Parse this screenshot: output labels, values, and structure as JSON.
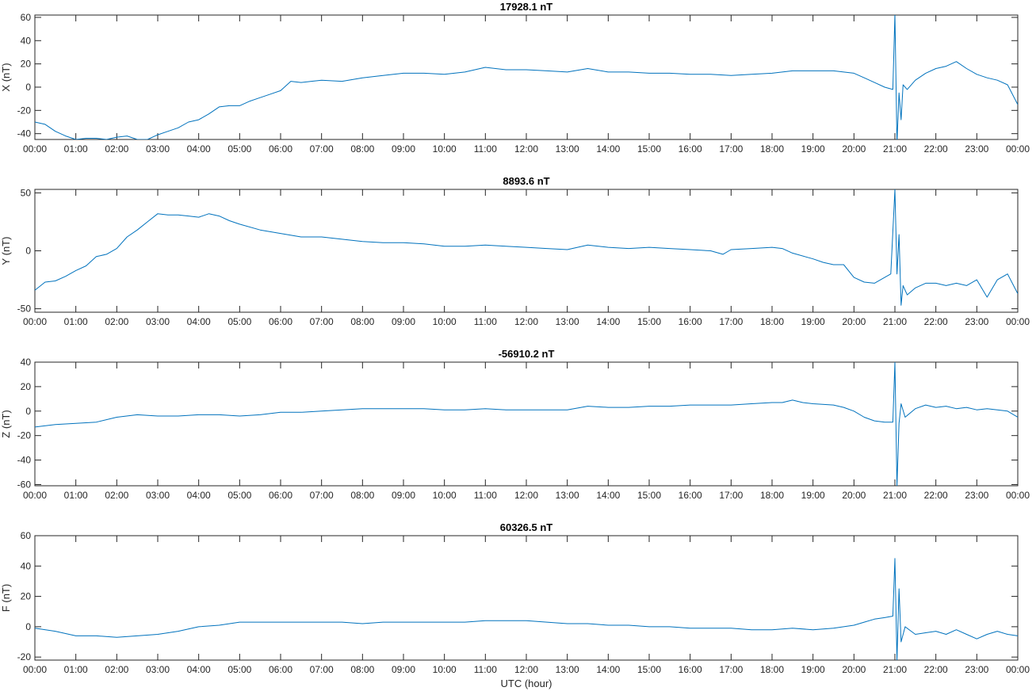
{
  "figure": {
    "xlabel": "UTC (hour)",
    "x_tick_labels": [
      "00:00",
      "01:00",
      "02:00",
      "03:00",
      "04:00",
      "05:00",
      "06:00",
      "07:00",
      "08:00",
      "09:00",
      "10:00",
      "11:00",
      "12:00",
      "13:00",
      "14:00",
      "15:00",
      "16:00",
      "17:00",
      "18:00",
      "19:00",
      "20:00",
      "21:00",
      "22:00",
      "23:00",
      "00:00"
    ]
  },
  "colors": {
    "line": "#0072BD",
    "axes": "#262626",
    "background": "#ffffff"
  },
  "chart_data": [
    {
      "type": "line",
      "title": "17928.1 nT",
      "ylabel": "X (nT)",
      "xlabel": "",
      "xlim": [
        0,
        24
      ],
      "ylim": [
        -45,
        62
      ],
      "yticks": [
        -40,
        -20,
        0,
        20,
        40,
        60
      ],
      "grid": false,
      "series": [
        {
          "x": [
            0,
            0.25,
            0.5,
            0.75,
            1,
            1.25,
            1.5,
            1.75,
            2,
            2.25,
            2.5,
            2.75,
            3,
            3.25,
            3.5,
            3.75,
            4,
            4.25,
            4.5,
            4.75,
            5,
            5.25,
            5.5,
            5.75,
            6,
            6.25,
            6.5,
            6.75,
            7,
            7.5,
            8,
            8.5,
            9,
            9.5,
            10,
            10.5,
            11,
            11.5,
            12,
            12.5,
            13,
            13.5,
            14,
            14.5,
            15,
            15.5,
            16,
            16.5,
            17,
            17.5,
            18,
            18.5,
            19,
            19.5,
            20,
            20.25,
            20.5,
            20.75,
            20.95,
            21.0,
            21.05,
            21.1,
            21.15,
            21.2,
            21.3,
            21.5,
            21.75,
            22,
            22.25,
            22.5,
            22.75,
            23,
            23.25,
            23.5,
            23.75,
            24
          ],
          "y": [
            -30,
            -32,
            -38,
            -42,
            -45,
            -44,
            -44,
            -45,
            -43,
            -42,
            -45,
            -45,
            -41,
            -38,
            -35,
            -30,
            -28,
            -23,
            -17,
            -16,
            -16,
            -12,
            -9,
            -6,
            -3,
            5,
            4,
            5,
            6,
            5,
            8,
            10,
            12,
            12,
            11,
            13,
            17,
            15,
            15,
            14,
            13,
            16,
            13,
            13,
            12,
            12,
            11,
            11,
            10,
            11,
            12,
            14,
            14,
            14,
            12,
            8,
            4,
            0,
            -2,
            63,
            -48,
            -5,
            -28,
            2,
            -2,
            6,
            12,
            16,
            18,
            22,
            16,
            11,
            8,
            6,
            2,
            -15
          ]
        }
      ]
    },
    {
      "type": "line",
      "title": "8893.6 nT",
      "ylabel": "Y (nT)",
      "xlabel": "",
      "xlim": [
        0,
        24
      ],
      "ylim": [
        -53,
        53
      ],
      "yticks": [
        -50,
        0,
        50
      ],
      "grid": false,
      "series": [
        {
          "x": [
            0,
            0.25,
            0.5,
            0.75,
            1,
            1.25,
            1.5,
            1.75,
            2,
            2.25,
            2.5,
            2.75,
            3,
            3.25,
            3.5,
            3.75,
            4,
            4.25,
            4.5,
            4.75,
            5,
            5.5,
            6,
            6.5,
            7,
            7.5,
            8,
            8.5,
            9,
            9.5,
            10,
            10.5,
            11,
            11.5,
            12,
            12.5,
            13,
            13.5,
            14,
            14.5,
            15,
            15.5,
            16,
            16.5,
            16.8,
            17,
            17.5,
            18,
            18.25,
            18.5,
            19,
            19.25,
            19.5,
            19.75,
            20,
            20.25,
            20.5,
            20.75,
            20.9,
            21.0,
            21.05,
            21.1,
            21.15,
            21.2,
            21.3,
            21.5,
            21.75,
            22,
            22.25,
            22.5,
            22.75,
            23,
            23.25,
            23.5,
            23.75,
            24
          ],
          "y": [
            -34,
            -27,
            -26,
            -22,
            -17,
            -13,
            -5,
            -3,
            2,
            12,
            18,
            25,
            32,
            31,
            31,
            30,
            29,
            32,
            30,
            26,
            23,
            18,
            15,
            12,
            12,
            10,
            8,
            7,
            7,
            6,
            4,
            4,
            5,
            4,
            3,
            2,
            1,
            5,
            3,
            2,
            3,
            2,
            1,
            0,
            -3,
            1,
            2,
            3,
            2,
            -2,
            -7,
            -10,
            -12,
            -12,
            -23,
            -27,
            -28,
            -23,
            -20,
            53,
            -20,
            14,
            -47,
            -30,
            -38,
            -32,
            -28,
            -28,
            -30,
            -28,
            -30,
            -25,
            -40,
            -25,
            -20,
            -37
          ]
        }
      ]
    },
    {
      "type": "line",
      "title": "-56910.2 nT",
      "ylabel": "Z (nT)",
      "xlabel": "",
      "xlim": [
        0,
        24
      ],
      "ylim": [
        -61,
        40
      ],
      "yticks": [
        -60,
        -40,
        -20,
        0,
        20,
        40
      ],
      "grid": false,
      "series": [
        {
          "x": [
            0,
            0.5,
            1,
            1.5,
            2,
            2.5,
            3,
            3.5,
            4,
            4.5,
            5,
            5.5,
            6,
            6.5,
            7,
            7.5,
            8,
            8.5,
            9,
            9.5,
            10,
            10.5,
            11,
            11.5,
            12,
            12.5,
            13,
            13.5,
            14,
            14.5,
            15,
            15.5,
            16,
            16.5,
            17,
            17.5,
            18,
            18.25,
            18.5,
            18.75,
            19,
            19.5,
            19.75,
            20,
            20.25,
            20.5,
            20.75,
            20.95,
            21.0,
            21.05,
            21.1,
            21.15,
            21.25,
            21.5,
            21.75,
            22,
            22.25,
            22.5,
            22.75,
            23,
            23.25,
            23.5,
            23.75,
            24
          ],
          "y": [
            -13,
            -11,
            -10,
            -9,
            -5,
            -3,
            -4,
            -4,
            -3,
            -3,
            -4,
            -3,
            -1,
            -1,
            0,
            1,
            2,
            2,
            2,
            2,
            1,
            1,
            2,
            1,
            1,
            1,
            1,
            4,
            3,
            3,
            4,
            4,
            5,
            5,
            5,
            6,
            7,
            7,
            9,
            7,
            6,
            5,
            3,
            0,
            -5,
            -8,
            -9,
            -9,
            40,
            -61,
            -10,
            6,
            -5,
            2,
            5,
            3,
            4,
            2,
            3,
            1,
            2,
            1,
            0,
            -5
          ]
        }
      ]
    },
    {
      "type": "line",
      "title": "60326.5 nT",
      "ylabel": "F (nT)",
      "xlabel": "UTC (hour)",
      "xlim": [
        0,
        24
      ],
      "ylim": [
        -22,
        60
      ],
      "yticks": [
        -20,
        0,
        20,
        40,
        60
      ],
      "grid": false,
      "series": [
        {
          "x": [
            0,
            0.5,
            1,
            1.5,
            2,
            2.5,
            3,
            3.5,
            4,
            4.5,
            5,
            5.5,
            6,
            6.5,
            7,
            7.5,
            8,
            8.5,
            9,
            9.5,
            10,
            10.5,
            11,
            11.5,
            12,
            12.5,
            13,
            13.5,
            14,
            14.5,
            15,
            15.5,
            16,
            16.5,
            17,
            17.5,
            18,
            18.5,
            19,
            19.5,
            20,
            20.25,
            20.5,
            20.75,
            20.95,
            21.0,
            21.05,
            21.1,
            21.15,
            21.25,
            21.5,
            21.75,
            22,
            22.25,
            22.5,
            22.75,
            23,
            23.25,
            23.5,
            23.75,
            24
          ],
          "y": [
            -1,
            -3,
            -6,
            -6,
            -7,
            -6,
            -5,
            -3,
            0,
            1,
            3,
            3,
            3,
            3,
            3,
            3,
            2,
            3,
            3,
            3,
            3,
            3,
            4,
            4,
            4,
            3,
            2,
            2,
            1,
            1,
            0,
            0,
            -1,
            -1,
            -1,
            -2,
            -2,
            -1,
            -2,
            -1,
            1,
            3,
            5,
            6,
            7,
            45,
            -22,
            25,
            -10,
            0,
            -5,
            -4,
            -3,
            -5,
            -2,
            -5,
            -8,
            -5,
            -3,
            -5,
            -6
          ]
        }
      ]
    }
  ]
}
